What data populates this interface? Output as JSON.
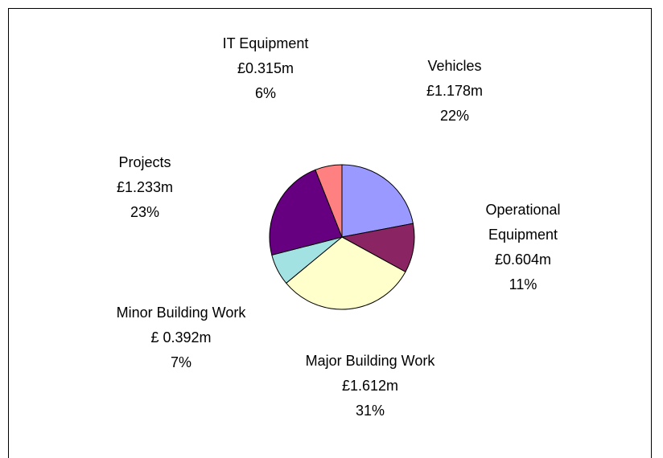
{
  "chart_data": {
    "type": "pie",
    "categories": [
      "Vehicles",
      "Operational Equipment",
      "Major Building Work",
      "Minor Building Work",
      "Projects",
      "IT Equipment"
    ],
    "amounts": [
      "£1.178m",
      "£0.604m",
      "£1.612m",
      "£ 0.392m",
      "£1.233m",
      "£0.315m"
    ],
    "values": [
      22,
      11,
      31,
      7,
      23,
      6
    ],
    "value_labels": [
      "22%",
      "11%",
      "31%",
      "7%",
      "23%",
      "6%"
    ],
    "colors": [
      "#9999ff",
      "#8a2462",
      "#ffffcc",
      "#a3e2e2",
      "#660080",
      "#ff8080"
    ]
  }
}
